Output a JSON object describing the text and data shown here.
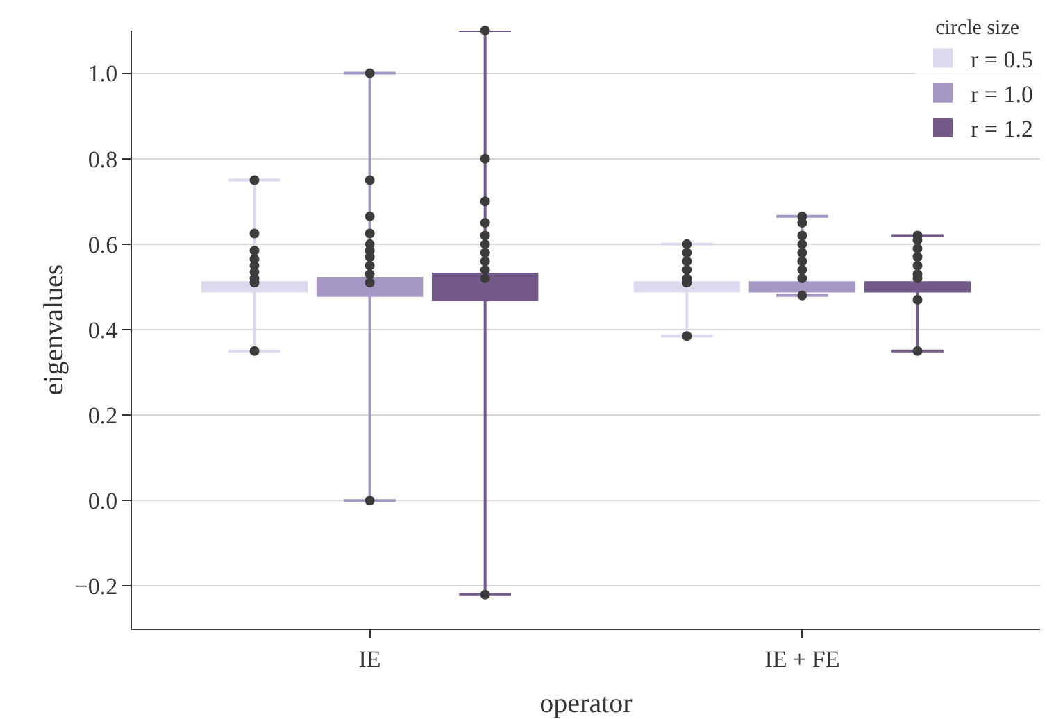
{
  "chart_data": {
    "type": "box",
    "xlabel": "operator",
    "ylabel": "eigenvalues",
    "legend_title": "circle size",
    "categories": [
      "IE",
      "IE + FE"
    ],
    "ylim": [
      -0.3,
      1.1
    ],
    "yticks": [
      {
        "value": -0.2,
        "label": "−0.2"
      },
      {
        "value": 0,
        "label": "0.0"
      },
      {
        "value": 0.2,
        "label": "0.2"
      },
      {
        "value": 0.4,
        "label": "0.4"
      },
      {
        "value": 0.6,
        "label": "0.6"
      },
      {
        "value": 0.8,
        "label": "0.8"
      },
      {
        "value": 1.0,
        "label": "1.0"
      }
    ],
    "grid": "y",
    "legend": "top right",
    "marker": "circle",
    "series": [
      {
        "name": "r = 0.5",
        "color": "#dcd9ef",
        "boxes": [
          {
            "low": 0.35,
            "q1": 0.49,
            "median": 0.5,
            "q3": 0.51,
            "high": 0.75,
            "outliers": [
              0.75,
              0.625,
              0.585,
              0.565,
              0.55,
              0.535,
              0.52,
              0.51,
              0.35
            ]
          },
          {
            "low": 0.385,
            "q1": 0.49,
            "median": 0.5,
            "q3": 0.51,
            "high": 0.6,
            "outliers": [
              0.6,
              0.58,
              0.56,
              0.54,
              0.52,
              0.51,
              0.385
            ]
          }
        ]
      },
      {
        "name": "r = 1.0",
        "color": "#a597c4",
        "boxes": [
          {
            "low": 0.0,
            "q1": 0.48,
            "median": 0.5,
            "q3": 0.52,
            "high": 1.0,
            "outliers": [
              1.0,
              0.75,
              0.665,
              0.625,
              0.6,
              0.585,
              0.57,
              0.55,
              0.53,
              0.51,
              0.0
            ]
          },
          {
            "low": 0.48,
            "q1": 0.49,
            "median": 0.5,
            "q3": 0.51,
            "high": 0.665,
            "outliers": [
              0.665,
              0.65,
              0.62,
              0.6,
              0.58,
              0.56,
              0.54,
              0.52,
              0.48
            ]
          }
        ]
      },
      {
        "name": "r = 1.2",
        "color": "#735a88",
        "boxes": [
          {
            "low": -0.22,
            "q1": 0.47,
            "median": 0.5,
            "q3": 0.53,
            "high": 1.1,
            "outliers": [
              1.1,
              0.8,
              0.7,
              0.65,
              0.62,
              0.6,
              0.58,
              0.56,
              0.54,
              0.52,
              -0.22
            ]
          },
          {
            "low": 0.35,
            "q1": 0.49,
            "median": 0.5,
            "q3": 0.51,
            "high": 0.62,
            "outliers": [
              0.62,
              0.61,
              0.59,
              0.57,
              0.55,
              0.53,
              0.52,
              0.47,
              0.35
            ]
          }
        ]
      }
    ]
  }
}
